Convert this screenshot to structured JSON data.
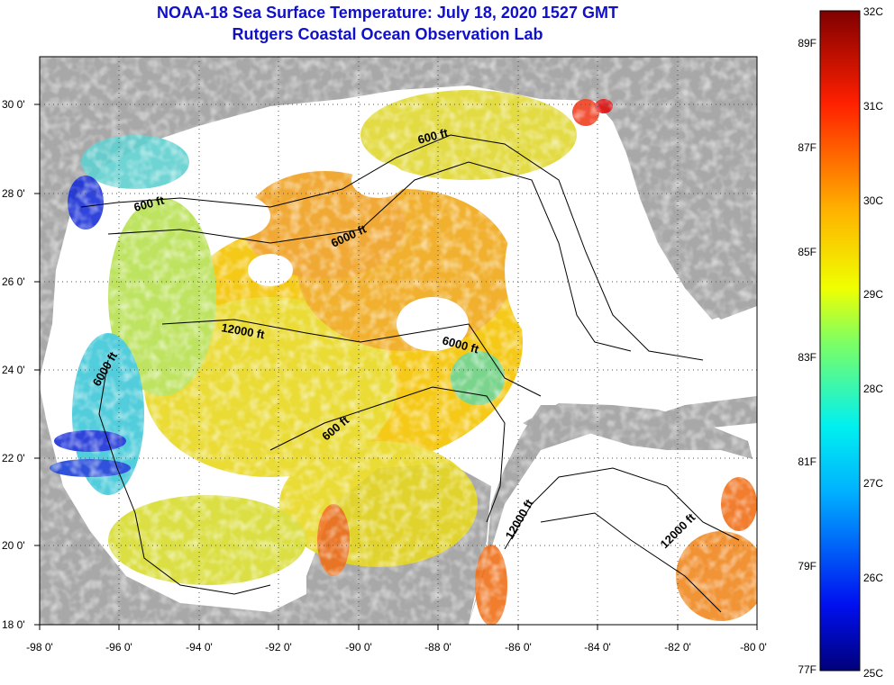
{
  "title": {
    "line1": "NOAA-18 Sea Surface Temperature:  July 18, 2020 1527 GMT",
    "line2": "Rutgers Coastal Ocean Observation Lab"
  },
  "colors": {
    "title_blue": "#1010c8",
    "land_gray": "#a8a8a8",
    "cloud_white": "#ffffff"
  },
  "latitude_labels": [
    "30 0'",
    "28 0'",
    "26 0'",
    "24 0'",
    "22 0'",
    "20 0'",
    "18 0'"
  ],
  "longitude_labels": [
    "-98 0'",
    "-96 0'",
    "-94 0'",
    "-92 0'",
    "-90 0'",
    "-88 0'",
    "-86 0'",
    "-84 0'",
    "-82 0'",
    "-80 0'"
  ],
  "contour_labels": [
    {
      "text": "600 ft"
    },
    {
      "text": "600 ft"
    },
    {
      "text": "6000 ft"
    },
    {
      "text": "12000 ft"
    },
    {
      "text": "6000 ft"
    },
    {
      "text": "6000 ft"
    },
    {
      "text": "600 ft"
    },
    {
      "text": "12000 ft"
    },
    {
      "text": "12000 ft"
    }
  ],
  "colorbar": {
    "celsius": [
      "32C",
      "31C",
      "30C",
      "29C",
      "28C",
      "27C",
      "26C",
      "25C"
    ],
    "fahrenheit": [
      "89F",
      "87F",
      "85F",
      "83F",
      "81F",
      "79F",
      "77F"
    ]
  }
}
